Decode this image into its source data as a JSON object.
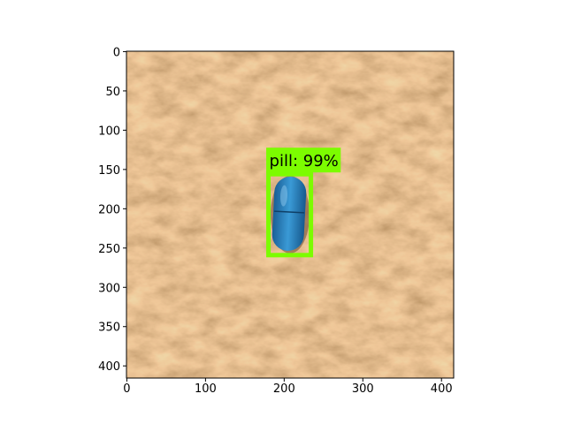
{
  "chart_data": {
    "type": "image",
    "xlim": [
      -0.5,
      415.5
    ],
    "ylim": [
      415.5,
      -0.5
    ],
    "xticks": [
      0,
      100,
      200,
      300,
      400
    ],
    "yticks": [
      0,
      50,
      100,
      150,
      200,
      250,
      300,
      350,
      400
    ],
    "boxes": [
      {
        "label": "pill: 99%",
        "xmin": 180,
        "ymin": 156,
        "xmax": 234,
        "ymax": 259,
        "color": "#7cfc00"
      }
    ]
  }
}
